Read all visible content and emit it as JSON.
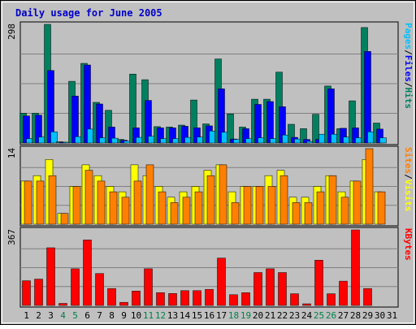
{
  "chart_data": {
    "type": "bar",
    "title": "Daily usage for June 2005",
    "categories": [
      "1",
      "2",
      "3",
      "4",
      "5",
      "6",
      "7",
      "8",
      "9",
      "10",
      "11",
      "12",
      "13",
      "14",
      "15",
      "16",
      "17",
      "18",
      "19",
      "20",
      "21",
      "22",
      "23",
      "24",
      "25",
      "26",
      "27",
      "28",
      "29",
      "30",
      "31"
    ],
    "weekend_days": [
      4,
      5,
      11,
      12,
      18,
      19,
      25,
      26
    ],
    "colors": {
      "background": "#c0c0c0",
      "frame": "#808080",
      "title": "#0000c8",
      "weekday_label": "#000000",
      "weekend_label": "#00804a",
      "hits": "#008060",
      "files": "#0000ff",
      "pages": "#00c0ff",
      "visits": "#ffff00",
      "sites": "#ff8000",
      "kbytes": "#ff0000"
    },
    "panels": [
      {
        "name": "hits-files-pages",
        "ymax_label": "298",
        "ymax": 298,
        "legend": [
          {
            "text": "Pages",
            "color": "#00c0ff"
          },
          {
            "text": "/",
            "color": "#000000"
          },
          {
            "text": "Files",
            "color": "#0000ff"
          },
          {
            "text": "/",
            "color": "#000000"
          },
          {
            "text": "Hits",
            "color": "#008060"
          }
        ],
        "series": [
          {
            "name": "Hits",
            "color": "#008060",
            "values": [
              75,
              75,
              298,
              3,
              155,
              200,
              102,
              82,
              9,
              173,
              159,
              41,
              40,
              45,
              108,
              48,
              211,
              73,
              40,
              110,
              110,
              178,
              47,
              36,
              72,
              143,
              36,
              106,
              290,
              50,
              0
            ]
          },
          {
            "name": "Files",
            "color": "#0000ff",
            "values": [
              68,
              70,
              182,
              2,
              118,
              196,
              98,
              40,
              7,
              38,
              107,
              38,
              38,
              42,
              38,
              43,
              136,
              10,
              36,
              97,
              104,
              91,
              14,
              9,
              9,
              136,
              37,
              38,
              230,
              35,
              0
            ]
          },
          {
            "name": "Pages",
            "color": "#00c0ff",
            "values": [
              11,
              15,
              28,
              1,
              16,
              35,
              13,
              12,
              5,
              14,
              17,
              11,
              11,
              14,
              15,
              30,
              27,
              9,
              11,
              13,
              11,
              20,
              10,
              4,
              22,
              22,
              15,
              13,
              28,
              13,
              0
            ]
          }
        ]
      },
      {
        "name": "visits-sites",
        "ymax_label": "14",
        "ymax": 14,
        "legend": [
          {
            "text": "Sites",
            "color": "#ff8000"
          },
          {
            "text": "/",
            "color": "#000000"
          },
          {
            "text": "Visits",
            "color": "#ffff00"
          }
        ],
        "series": [
          {
            "name": "Visits",
            "color": "#ffff00",
            "values": [
              8,
              9,
              12,
              2,
              7,
              11,
              9,
              7,
              6,
              11,
              9,
              7,
              5,
              6,
              7,
              10,
              11,
              6,
              7,
              7,
              9,
              10,
              5,
              5,
              7,
              9,
              6,
              8,
              12,
              6,
              0
            ]
          },
          {
            "name": "Sites",
            "color": "#ff8000",
            "values": [
              8,
              8,
              9,
              2,
              7,
              10,
              8,
              6,
              5,
              8,
              11,
              6,
              4,
              5,
              6,
              9,
              11,
              4,
              7,
              7,
              7,
              9,
              4,
              4,
              6,
              9,
              5,
              8,
              14,
              6,
              0
            ]
          }
        ]
      },
      {
        "name": "kbytes",
        "ymax_label": "367",
        "ymax": 367,
        "legend": [
          {
            "text": "KBytes",
            "color": "#ff0000"
          }
        ],
        "series": [
          {
            "name": "KBytes",
            "color": "#ff0000",
            "values": [
              120,
              128,
              280,
              10,
              178,
              318,
              155,
              82,
              15,
              70,
              178,
              62,
              58,
              72,
              72,
              78,
              230,
              52,
              62,
              160,
              178,
              160,
              57,
              8,
              220,
              57,
              118,
              367,
              82,
              0,
              0
            ]
          }
        ]
      }
    ]
  }
}
